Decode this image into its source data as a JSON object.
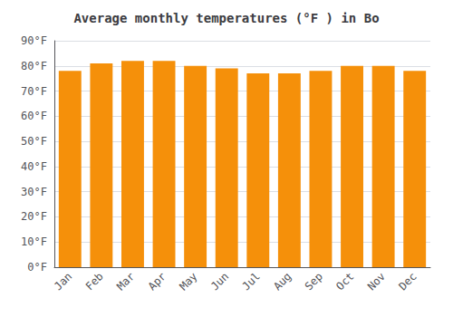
{
  "chart_data": {
    "type": "bar",
    "title": "Average monthly temperatures (°F ) in Bo",
    "categories": [
      "Jan",
      "Feb",
      "Mar",
      "Apr",
      "May",
      "Jun",
      "Jul",
      "Aug",
      "Sep",
      "Oct",
      "Nov",
      "Dec"
    ],
    "values": [
      78,
      81,
      82,
      82,
      80,
      79,
      77,
      77,
      78,
      80,
      80,
      78
    ],
    "color": "#F5900A",
    "ylim": [
      0,
      90
    ],
    "yticks": [
      {
        "value": 0,
        "label": "0°F"
      },
      {
        "value": 10,
        "label": "10°F"
      },
      {
        "value": 20,
        "label": "20°F"
      },
      {
        "value": 30,
        "label": "30°F"
      },
      {
        "value": 40,
        "label": "40°F"
      },
      {
        "value": 50,
        "label": "50°F"
      },
      {
        "value": 60,
        "label": "60°F"
      },
      {
        "value": 70,
        "label": "70°F"
      },
      {
        "value": 80,
        "label": "80°F"
      },
      {
        "value": 90,
        "label": "90°F"
      }
    ],
    "grid": true
  }
}
